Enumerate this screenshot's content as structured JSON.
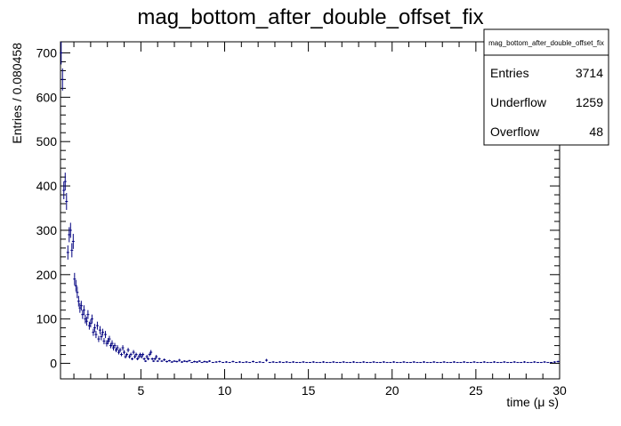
{
  "chart_data": {
    "type": "scatter",
    "title": "mag_bottom_after_double_offset_fix",
    "xlabel": "time (μ s)",
    "ylabel": "Entries / 0.080458",
    "xlim": [
      0.2,
      30
    ],
    "ylim": [
      -35,
      725
    ],
    "x_ticks": [
      5,
      10,
      15,
      20,
      25,
      30
    ],
    "y_ticks": [
      0,
      100,
      200,
      300,
      400,
      500,
      600,
      700
    ],
    "grid": false,
    "series_color": "#00007f",
    "stats_box": {
      "title": "mag_bottom_after_double_offset_fix",
      "rows": [
        {
          "label": "Entries",
          "value": "3714"
        },
        {
          "label": "Underflow",
          "value": "1259"
        },
        {
          "label": "Overflow",
          "value": "48"
        }
      ]
    },
    "points": [
      [
        0.24,
        700,
        26
      ],
      [
        0.32,
        640,
        25
      ],
      [
        0.4,
        390,
        20
      ],
      [
        0.48,
        410,
        20
      ],
      [
        0.56,
        365,
        19
      ],
      [
        0.64,
        250,
        16
      ],
      [
        0.72,
        290,
        17
      ],
      [
        0.8,
        300,
        17
      ],
      [
        0.88,
        255,
        16
      ],
      [
        0.96,
        275,
        17
      ],
      [
        1.04,
        190,
        14
      ],
      [
        1.12,
        175,
        13
      ],
      [
        1.2,
        160,
        13
      ],
      [
        1.28,
        140,
        12
      ],
      [
        1.36,
        125,
        11
      ],
      [
        1.44,
        130,
        11
      ],
      [
        1.52,
        110,
        10
      ],
      [
        1.6,
        120,
        11
      ],
      [
        1.68,
        100,
        10
      ],
      [
        1.76,
        95,
        10
      ],
      [
        1.84,
        110,
        10
      ],
      [
        1.92,
        85,
        9
      ],
      [
        2.0,
        90,
        9
      ],
      [
        2.08,
        100,
        10
      ],
      [
        2.16,
        70,
        8
      ],
      [
        2.24,
        80,
        9
      ],
      [
        2.32,
        65,
        8
      ],
      [
        2.4,
        85,
        9
      ],
      [
        2.48,
        55,
        7
      ],
      [
        2.56,
        75,
        9
      ],
      [
        2.64,
        60,
        8
      ],
      [
        2.72,
        70,
        8
      ],
      [
        2.8,
        50,
        7
      ],
      [
        2.88,
        65,
        8
      ],
      [
        2.96,
        45,
        7
      ],
      [
        3.04,
        50,
        7
      ],
      [
        3.12,
        55,
        7
      ],
      [
        3.2,
        40,
        6
      ],
      [
        3.28,
        45,
        7
      ],
      [
        3.36,
        35,
        6
      ],
      [
        3.44,
        40,
        6
      ],
      [
        3.52,
        30,
        5
      ],
      [
        3.6,
        35,
        6
      ],
      [
        3.68,
        25,
        5
      ],
      [
        3.76,
        30,
        5
      ],
      [
        3.84,
        20,
        4
      ],
      [
        3.92,
        35,
        6
      ],
      [
        4.0,
        25,
        5
      ],
      [
        4.08,
        15,
        4
      ],
      [
        4.16,
        20,
        4
      ],
      [
        4.24,
        30,
        5
      ],
      [
        4.32,
        15,
        4
      ],
      [
        4.4,
        20,
        4
      ],
      [
        4.48,
        10,
        3
      ],
      [
        4.56,
        25,
        5
      ],
      [
        4.64,
        15,
        4
      ],
      [
        4.72,
        20,
        4
      ],
      [
        4.8,
        10,
        3
      ],
      [
        4.88,
        15,
        4
      ],
      [
        4.96,
        20,
        4
      ],
      [
        5.04,
        15,
        4
      ],
      [
        5.12,
        20,
        4
      ],
      [
        5.2,
        10,
        3
      ],
      [
        5.28,
        5,
        2
      ],
      [
        5.36,
        15,
        4
      ],
      [
        5.44,
        10,
        3
      ],
      [
        5.52,
        20,
        4
      ],
      [
        5.6,
        25,
        5
      ],
      [
        5.68,
        10,
        3
      ],
      [
        5.76,
        5,
        2
      ],
      [
        5.84,
        10,
        3
      ],
      [
        5.92,
        15,
        4
      ],
      [
        6.0,
        5,
        2
      ],
      [
        6.1,
        10,
        3
      ],
      [
        6.25,
        5,
        2
      ],
      [
        6.4,
        8,
        3
      ],
      [
        6.55,
        4,
        2
      ],
      [
        6.7,
        6,
        2
      ],
      [
        6.85,
        3,
        2
      ],
      [
        7.0,
        5,
        2
      ],
      [
        7.15,
        4,
        2
      ],
      [
        7.3,
        7,
        3
      ],
      [
        7.45,
        3,
        2
      ],
      [
        7.6,
        5,
        2
      ],
      [
        7.75,
        4,
        2
      ],
      [
        7.9,
        6,
        2
      ],
      [
        8.05,
        2,
        1
      ],
      [
        8.2,
        4,
        2
      ],
      [
        8.35,
        3,
        2
      ],
      [
        8.5,
        5,
        2
      ],
      [
        8.65,
        2,
        1
      ],
      [
        8.8,
        4,
        2
      ],
      [
        8.95,
        3,
        2
      ],
      [
        9.1,
        5,
        2
      ],
      [
        9.3,
        2,
        1
      ],
      [
        9.5,
        3,
        2
      ],
      [
        9.7,
        4,
        2
      ],
      [
        9.9,
        2,
        1
      ],
      [
        10.1,
        3,
        2
      ],
      [
        10.3,
        2,
        1
      ],
      [
        10.5,
        4,
        2
      ],
      [
        10.7,
        2,
        1
      ],
      [
        10.9,
        3,
        2
      ],
      [
        11.1,
        2,
        1
      ],
      [
        11.3,
        3,
        2
      ],
      [
        11.5,
        2,
        1
      ],
      [
        11.7,
        4,
        2
      ],
      [
        11.9,
        2,
        1
      ],
      [
        12.1,
        3,
        2
      ],
      [
        12.3,
        2,
        1
      ],
      [
        12.5,
        7,
        3
      ],
      [
        12.7,
        2,
        1
      ],
      [
        12.9,
        3,
        2
      ],
      [
        13.1,
        2,
        1
      ],
      [
        13.3,
        3,
        2
      ],
      [
        13.5,
        2,
        1
      ],
      [
        13.7,
        3,
        2
      ],
      [
        13.9,
        2,
        1
      ],
      [
        14.1,
        3,
        2
      ],
      [
        14.3,
        2,
        1
      ],
      [
        14.5,
        2,
        1
      ],
      [
        14.7,
        3,
        2
      ],
      [
        14.9,
        2,
        1
      ],
      [
        15.1,
        2,
        1
      ],
      [
        15.3,
        3,
        2
      ],
      [
        15.5,
        2,
        1
      ],
      [
        15.7,
        2,
        1
      ],
      [
        15.9,
        3,
        2
      ],
      [
        16.1,
        2,
        1
      ],
      [
        16.3,
        2,
        1
      ],
      [
        16.5,
        3,
        2
      ],
      [
        16.7,
        2,
        1
      ],
      [
        16.9,
        2,
        1
      ],
      [
        17.1,
        3,
        2
      ],
      [
        17.3,
        2,
        1
      ],
      [
        17.5,
        2,
        1
      ],
      [
        17.7,
        3,
        2
      ],
      [
        17.9,
        2,
        1
      ],
      [
        18.1,
        2,
        1
      ],
      [
        18.3,
        3,
        2
      ],
      [
        18.5,
        2,
        1
      ],
      [
        18.7,
        2,
        1
      ],
      [
        18.9,
        3,
        2
      ],
      [
        19.1,
        2,
        1
      ],
      [
        19.3,
        2,
        1
      ],
      [
        19.5,
        3,
        2
      ],
      [
        19.7,
        2,
        1
      ],
      [
        19.9,
        2,
        1
      ],
      [
        20.1,
        3,
        2
      ],
      [
        20.3,
        2,
        1
      ],
      [
        20.5,
        2,
        1
      ],
      [
        20.7,
        3,
        2
      ],
      [
        20.9,
        2,
        1
      ],
      [
        21.1,
        2,
        1
      ],
      [
        21.3,
        3,
        2
      ],
      [
        21.5,
        2,
        1
      ],
      [
        21.7,
        2,
        1
      ],
      [
        21.9,
        3,
        2
      ],
      [
        22.1,
        2,
        1
      ],
      [
        22.3,
        2,
        1
      ],
      [
        22.5,
        3,
        2
      ],
      [
        22.7,
        2,
        1
      ],
      [
        22.9,
        2,
        1
      ],
      [
        23.1,
        3,
        2
      ],
      [
        23.3,
        2,
        1
      ],
      [
        23.5,
        2,
        1
      ],
      [
        23.7,
        3,
        2
      ],
      [
        23.9,
        2,
        1
      ],
      [
        24.1,
        2,
        1
      ],
      [
        24.3,
        3,
        2
      ],
      [
        24.5,
        2,
        1
      ],
      [
        24.7,
        2,
        1
      ],
      [
        24.9,
        3,
        2
      ],
      [
        25.1,
        2,
        1
      ],
      [
        25.3,
        2,
        1
      ],
      [
        25.5,
        3,
        2
      ],
      [
        25.7,
        2,
        1
      ],
      [
        25.9,
        2,
        1
      ],
      [
        26.1,
        3,
        2
      ],
      [
        26.3,
        2,
        1
      ],
      [
        26.5,
        2,
        1
      ],
      [
        26.7,
        3,
        2
      ],
      [
        26.9,
        2,
        1
      ],
      [
        27.1,
        2,
        1
      ],
      [
        27.3,
        3,
        2
      ],
      [
        27.5,
        2,
        1
      ],
      [
        27.7,
        2,
        1
      ],
      [
        27.9,
        3,
        2
      ],
      [
        28.1,
        2,
        1
      ],
      [
        28.3,
        2,
        1
      ],
      [
        28.5,
        3,
        2
      ],
      [
        28.7,
        2,
        1
      ],
      [
        28.9,
        2,
        1
      ],
      [
        29.1,
        3,
        2
      ],
      [
        29.3,
        2,
        1
      ],
      [
        29.5,
        2,
        1
      ],
      [
        29.7,
        3,
        2
      ],
      [
        29.9,
        4,
        2
      ]
    ]
  }
}
